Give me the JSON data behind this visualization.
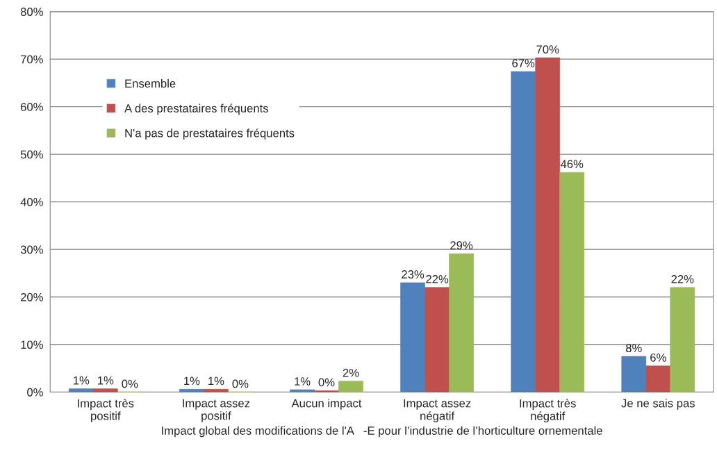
{
  "chart_data": {
    "type": "bar",
    "xlabel": "Impact global des modifications de l'A   -E pour l’industrie de l’horticulture ornementale",
    "categories": [
      "Impact très\npositif",
      "Impact assez\npositif",
      "Aucun impact",
      "Impact assez\nnégatif",
      "Impact très\nnégatif",
      "Je ne sais pas"
    ],
    "series": [
      {
        "name": "Ensemble",
        "color": "#4f81bd",
        "values": [
          0.7,
          0.6,
          0.5,
          23.0,
          67.4,
          7.5
        ],
        "value_labels": [
          "1%",
          "1%",
          "1%",
          "23%",
          "67%",
          "8%"
        ]
      },
      {
        "name": "A des prestataires fréquents",
        "color": "#c0504d",
        "values": [
          0.7,
          0.6,
          0.3,
          22.0,
          70.3,
          5.5
        ],
        "value_labels": [
          "1%",
          "1%",
          "0%",
          "22%",
          "70%",
          "6%"
        ]
      },
      {
        "name": "N'a pas de prestataires fréquents",
        "color": "#9bbb59",
        "values": [
          0,
          0,
          2.3,
          29.1,
          46.2,
          22.0
        ],
        "value_labels": [
          "0%",
          "0%",
          "2%",
          "29%",
          "46%",
          "22%"
        ]
      }
    ],
    "ylim": [
      0,
      80
    ],
    "yticks": [
      {
        "value": 0,
        "label": "0%"
      },
      {
        "value": 10,
        "label": "10%"
      },
      {
        "value": 20,
        "label": "20%"
      },
      {
        "value": 30,
        "label": "30%"
      },
      {
        "value": 40,
        "label": "40%"
      },
      {
        "value": 50,
        "label": "50%"
      },
      {
        "value": 60,
        "label": "60%"
      },
      {
        "value": 70,
        "label": "70%"
      },
      {
        "value": 80,
        "label": "80%"
      }
    ],
    "grid": "y",
    "legend": "top left"
  }
}
